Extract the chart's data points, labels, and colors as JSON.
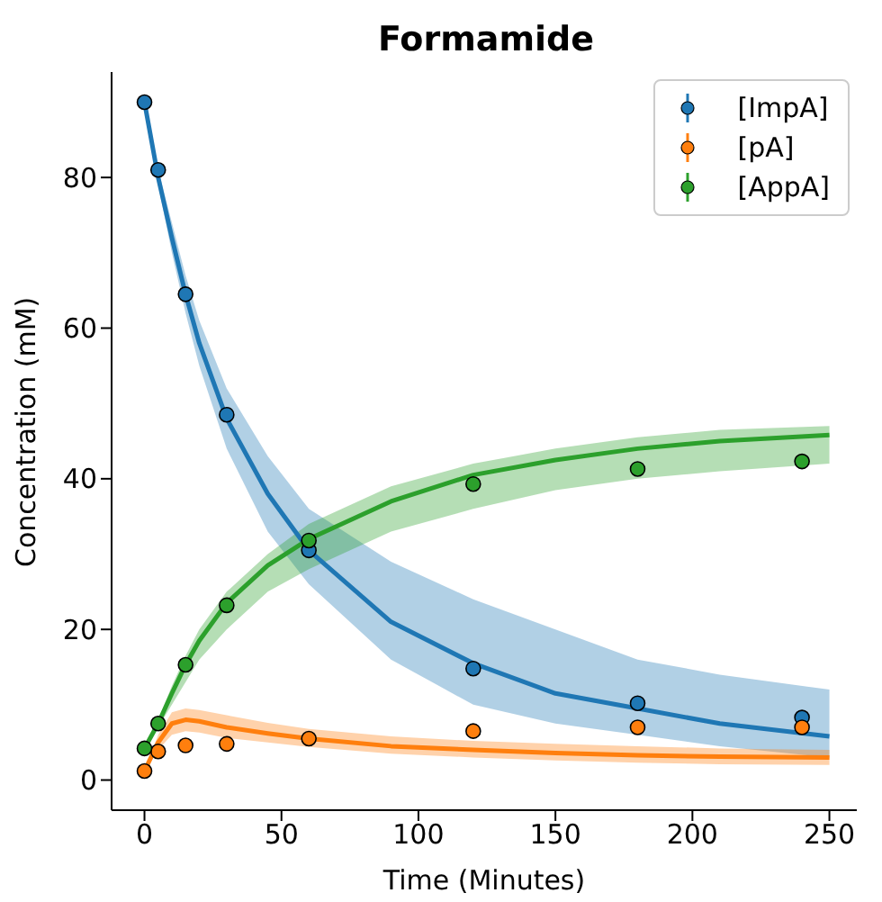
{
  "chart_data": {
    "type": "scatter",
    "title": "Formamide",
    "xlabel": "Time (Minutes)",
    "ylabel": "Concentration (mM)",
    "xlim": [
      -12,
      260
    ],
    "xticks": [
      0,
      50,
      100,
      150,
      200,
      250
    ],
    "ylim": [
      -4,
      94
    ],
    "yticks": [
      0,
      20,
      40,
      60,
      80
    ],
    "legend": "top right",
    "series": [
      {
        "name": "[ImpA]",
        "marker": "circle",
        "color": "#1f77b4",
        "x": [
          0,
          5,
          15,
          30,
          60,
          120,
          180,
          240
        ],
        "values": [
          90,
          81,
          64.5,
          48.5,
          30.5,
          14.8,
          10.2,
          8.3
        ]
      },
      {
        "name": "[pA]",
        "marker": "circle",
        "color": "#ff7f0e",
        "x": [
          0,
          5,
          15,
          30,
          60,
          120,
          180,
          240
        ],
        "values": [
          1.2,
          3.8,
          4.6,
          4.8,
          5.5,
          6.5,
          7,
          7
        ]
      },
      {
        "name": "[AppA]",
        "marker": "circle",
        "color": "#2ca02c",
        "x": [
          0,
          5,
          15,
          30,
          60,
          120,
          180,
          240
        ],
        "values": [
          4.2,
          7.5,
          15.3,
          23.2,
          31.8,
          39.3,
          41.3,
          42.3
        ]
      },
      {
        "type": "line",
        "marker": "none",
        "color": "#1f77b4",
        "x": [
          0,
          5,
          10,
          15,
          20,
          30,
          45,
          60,
          90,
          120,
          150,
          180,
          210,
          250
        ],
        "values": [
          90,
          80,
          72,
          64.5,
          58,
          48,
          38,
          30.5,
          21,
          15.5,
          11.5,
          9.5,
          7.5,
          5.8
        ],
        "lower": [
          90,
          79,
          70,
          62,
          55,
          44,
          33,
          26,
          16,
          10,
          7.5,
          6,
          4.5,
          3
        ],
        "upper": [
          90,
          81,
          74,
          67,
          61,
          52,
          43,
          36,
          29,
          24,
          20,
          16,
          14,
          12
        ]
      },
      {
        "type": "line",
        "marker": "none",
        "color": "#ff7f0e",
        "x": [
          0,
          5,
          10,
          15,
          20,
          30,
          45,
          60,
          90,
          120,
          150,
          180,
          210,
          250
        ],
        "values": [
          1.2,
          5,
          7.5,
          8,
          7.8,
          7,
          6.2,
          5.5,
          4.5,
          4,
          3.6,
          3.3,
          3.1,
          3
        ],
        "lower": [
          1.2,
          4,
          6,
          6.5,
          6.3,
          5.6,
          5,
          4.4,
          3.5,
          3,
          2.6,
          2.3,
          2.1,
          2
        ],
        "upper": [
          1.2,
          6,
          9,
          9.5,
          9.3,
          8.6,
          7.6,
          6.8,
          5.8,
          5.2,
          4.8,
          4.5,
          4.2,
          4
        ]
      },
      {
        "type": "line",
        "marker": "none",
        "color": "#2ca02c",
        "x": [
          0,
          5,
          10,
          15,
          20,
          30,
          45,
          60,
          90,
          120,
          150,
          180,
          210,
          250
        ],
        "values": [
          4.2,
          7.5,
          11.5,
          15.3,
          18.5,
          23.5,
          28.5,
          32,
          37,
          40.5,
          42.5,
          44,
          45,
          45.8
        ],
        "lower": [
          4.2,
          7,
          10,
          13,
          16,
          20,
          25,
          28,
          33,
          36,
          38.5,
          40,
          41,
          42
        ],
        "upper": [
          4.2,
          8,
          12.5,
          16.5,
          20,
          25,
          30,
          34,
          39,
          42,
          44,
          45.5,
          46.5,
          47
        ]
      }
    ]
  }
}
